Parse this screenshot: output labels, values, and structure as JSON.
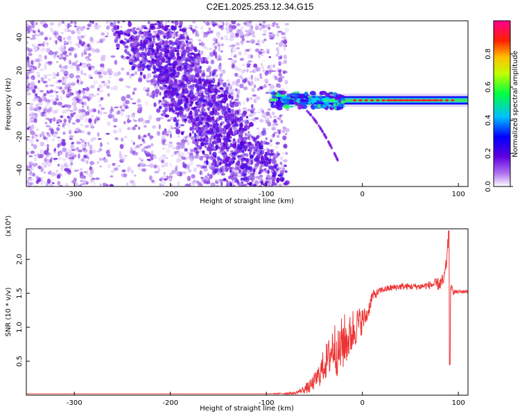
{
  "figure": {
    "title": "C2E1.2025.253.12.34.G15"
  },
  "colorbar": {
    "label": "Normalized spectral amplitude",
    "ticks": [
      "0.0",
      "0.2",
      "0.4",
      "0.6",
      "0.8"
    ],
    "tick_values": [
      0.0,
      0.2,
      0.4,
      0.6,
      0.8
    ],
    "range": [
      0,
      1
    ]
  },
  "chart_data": [
    {
      "type": "heatmap",
      "title": "",
      "xlabel": "Height of straight line (km)",
      "ylabel": "Frequency (Hz)",
      "xlim": [
        -350,
        110
      ],
      "ylim": [
        -50,
        50
      ],
      "x_ticks": [
        "-300",
        "-200",
        "-100",
        "0",
        "100"
      ],
      "x_tick_values": [
        -300,
        -200,
        -100,
        0,
        100
      ],
      "y_ticks": [
        "-40",
        "-20",
        "0",
        "20",
        "40"
      ],
      "y_tick_values": [
        -40,
        -20,
        0,
        20,
        40
      ],
      "colormap": [
        "#ffffff",
        "#7a00d8",
        "#3000ff",
        "#00c8ff",
        "#00ff60",
        "#ffff00",
        "#ff8000",
        "#ff0000",
        "#ff00a0"
      ],
      "regions": [
        {
          "desc": "noise",
          "x_range": [
            -350,
            -78
          ],
          "y_range": [
            -50,
            50
          ],
          "level": 0.15
        },
        {
          "desc": "diagonal band",
          "x_from": [
            -230,
            45
          ],
          "x_to": [
            -110,
            -45
          ],
          "level": 0.2
        },
        {
          "desc": "carrier",
          "x_range": [
            -95,
            110
          ],
          "frequency": 2,
          "level": 0.9
        },
        {
          "desc": "branch",
          "x_range": [
            -70,
            -25
          ],
          "frequency_from": 0,
          "frequency_to": -35,
          "level": 0.25
        }
      ]
    },
    {
      "type": "line",
      "title": "",
      "xlabel": "Height of straight line (km)",
      "ylabel": "SNR (10 * v/v)",
      "y_scale_label": "(x10⁴)",
      "xlim": [
        -350,
        110
      ],
      "ylim": [
        0,
        2.45
      ],
      "x_ticks": [
        "-300",
        "-200",
        "-100",
        "0",
        "100"
      ],
      "x_tick_values": [
        -300,
        -200,
        -100,
        0,
        100
      ],
      "y_ticks": [
        "0.5",
        "1.0",
        "1.5",
        "2.0"
      ],
      "y_tick_values": [
        0.5,
        1.0,
        1.5,
        2.0
      ],
      "series": [
        {
          "color": "#ee3333",
          "x": [
            -350,
            -300,
            -250,
            -200,
            -150,
            -100,
            -70,
            -62,
            -55,
            -50,
            -45,
            -40,
            -35,
            -30,
            -25,
            -20,
            -15,
            -10,
            -5,
            0,
            5,
            10,
            15,
            20,
            30,
            40,
            50,
            60,
            70,
            80,
            85,
            88,
            90,
            91,
            92,
            95,
            100,
            110
          ],
          "y": [
            0.02,
            0.02,
            0.02,
            0.02,
            0.02,
            0.02,
            0.03,
            0.08,
            0.12,
            0.2,
            0.3,
            0.45,
            0.55,
            0.75,
            0.6,
            0.8,
            0.8,
            0.95,
            1.05,
            1.1,
            1.18,
            1.45,
            1.5,
            1.55,
            1.58,
            1.6,
            1.6,
            1.6,
            1.62,
            1.64,
            1.68,
            2.0,
            2.4,
            0.45,
            1.6,
            1.52,
            1.52,
            1.53
          ],
          "jitter": [
            0,
            0,
            0,
            0,
            0,
            0,
            0.02,
            0.05,
            0.1,
            0.12,
            0.18,
            0.25,
            0.3,
            0.4,
            0.35,
            0.45,
            0.3,
            0.35,
            0.25,
            0.2,
            0.12,
            0.1,
            0.06,
            0.05,
            0.05,
            0.05,
            0.05,
            0.05,
            0.06,
            0.1,
            0.12,
            0.12,
            0.12,
            0.0,
            0.05,
            0.04,
            0.03,
            0.03
          ]
        }
      ]
    }
  ]
}
